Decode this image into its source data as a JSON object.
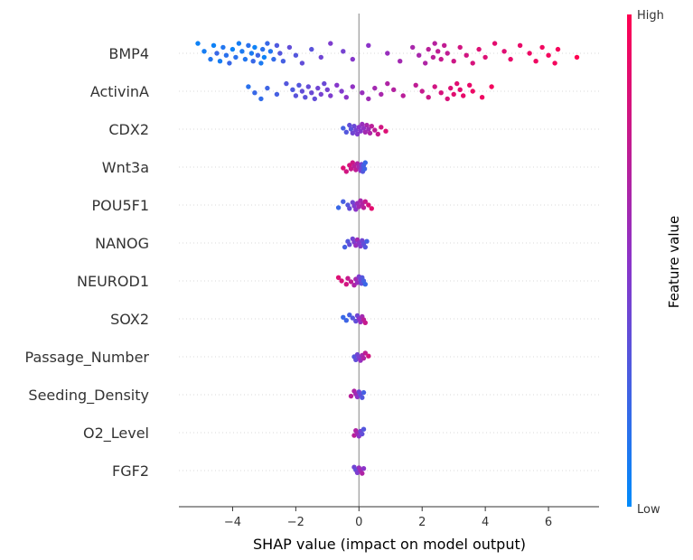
{
  "chart_data": {
    "type": "scatter",
    "subtype": "shap-beeswarm",
    "title": "",
    "xlabel": "SHAP value (impact on model output)",
    "ylabel": "",
    "xlim": [
      -5.7,
      7.6
    ],
    "xticks": [
      -4,
      -2,
      0,
      2,
      4,
      6
    ],
    "xtick_labels": [
      "−4",
      "−2",
      "0",
      "2",
      "4",
      "6"
    ],
    "features": [
      "BMP4",
      "ActivinA",
      "CDX2",
      "Wnt3a",
      "POU5F1",
      "NANOG",
      "NEUROD1",
      "SOX2",
      "Passage_Number",
      "Seeding_Density",
      "O2_Level",
      "FGF2"
    ],
    "colorbar": {
      "title": "Feature value",
      "high_label": "High",
      "low_label": "Low",
      "low_color": "#008bfb",
      "high_color": "#ff0051"
    },
    "colors": {
      "axis": "#333333",
      "zero_line": "#999999",
      "row_grid": "#cccccc"
    },
    "series": [
      {
        "feature": "BMP4",
        "points": [
          [
            -5.1,
            0.05
          ],
          [
            -4.9,
            0.08
          ],
          [
            -4.7,
            0.12
          ],
          [
            -4.6,
            0.05
          ],
          [
            -4.5,
            0.2
          ],
          [
            -4.4,
            0.08
          ],
          [
            -4.3,
            0.12
          ],
          [
            -4.2,
            0.15
          ],
          [
            -4.1,
            0.2
          ],
          [
            -4.0,
            0.05
          ],
          [
            -3.9,
            0.15
          ],
          [
            -3.8,
            0.08
          ],
          [
            -3.7,
            0.1
          ],
          [
            -3.6,
            0.12
          ],
          [
            -3.5,
            0.15
          ],
          [
            -3.4,
            0.1
          ],
          [
            -3.35,
            0.2
          ],
          [
            -3.3,
            0.05
          ],
          [
            -3.2,
            0.22
          ],
          [
            -3.1,
            0.1
          ],
          [
            -3.05,
            0.15
          ],
          [
            -3.0,
            0.05
          ],
          [
            -2.9,
            0.2
          ],
          [
            -2.8,
            0.12
          ],
          [
            -2.7,
            0.18
          ],
          [
            -2.6,
            0.28
          ],
          [
            -2.5,
            0.3
          ],
          [
            -2.4,
            0.25
          ],
          [
            -2.2,
            0.35
          ],
          [
            -2.0,
            0.3
          ],
          [
            -1.8,
            0.35
          ],
          [
            -1.5,
            0.32
          ],
          [
            -1.2,
            0.4
          ],
          [
            -0.9,
            0.45
          ],
          [
            -0.5,
            0.42
          ],
          [
            -0.2,
            0.48
          ],
          [
            0.3,
            0.5
          ],
          [
            0.9,
            0.55
          ],
          [
            1.3,
            0.6
          ],
          [
            1.7,
            0.62
          ],
          [
            1.9,
            0.62
          ],
          [
            2.1,
            0.65
          ],
          [
            2.2,
            0.7
          ],
          [
            2.35,
            0.7
          ],
          [
            2.4,
            0.68
          ],
          [
            2.5,
            0.72
          ],
          [
            2.6,
            0.75
          ],
          [
            2.7,
            0.73
          ],
          [
            2.8,
            0.72
          ],
          [
            3.0,
            0.78
          ],
          [
            3.2,
            0.8
          ],
          [
            3.4,
            0.8
          ],
          [
            3.6,
            0.82
          ],
          [
            3.8,
            0.85
          ],
          [
            4.0,
            0.85
          ],
          [
            4.3,
            0.88
          ],
          [
            4.6,
            0.86
          ],
          [
            4.8,
            0.9
          ],
          [
            5.1,
            0.9
          ],
          [
            5.4,
            0.92
          ],
          [
            5.6,
            0.93
          ],
          [
            5.8,
            0.94
          ],
          [
            6.0,
            0.95
          ],
          [
            6.2,
            0.95
          ],
          [
            6.3,
            0.96
          ],
          [
            6.9,
            1.0
          ]
        ]
      },
      {
        "feature": "ActivinA",
        "points": [
          [
            -3.5,
            0.15
          ],
          [
            -3.3,
            0.2
          ],
          [
            -3.1,
            0.18
          ],
          [
            -2.9,
            0.22
          ],
          [
            -2.6,
            0.25
          ],
          [
            -2.3,
            0.3
          ],
          [
            -2.1,
            0.28
          ],
          [
            -2.0,
            0.32
          ],
          [
            -1.9,
            0.3
          ],
          [
            -1.8,
            0.35
          ],
          [
            -1.7,
            0.33
          ],
          [
            -1.6,
            0.36
          ],
          [
            -1.5,
            0.38
          ],
          [
            -1.4,
            0.35
          ],
          [
            -1.3,
            0.4
          ],
          [
            -1.2,
            0.42
          ],
          [
            -1.1,
            0.38
          ],
          [
            -1.0,
            0.42
          ],
          [
            -0.9,
            0.45
          ],
          [
            -0.7,
            0.48
          ],
          [
            -0.55,
            0.46
          ],
          [
            -0.4,
            0.5
          ],
          [
            -0.2,
            0.52
          ],
          [
            0.1,
            0.55
          ],
          [
            0.3,
            0.58
          ],
          [
            0.5,
            0.6
          ],
          [
            0.7,
            0.62
          ],
          [
            0.9,
            0.65
          ],
          [
            1.1,
            0.67
          ],
          [
            1.4,
            0.7
          ],
          [
            1.8,
            0.72
          ],
          [
            2.0,
            0.75
          ],
          [
            2.2,
            0.78
          ],
          [
            2.4,
            0.8
          ],
          [
            2.6,
            0.82
          ],
          [
            2.8,
            0.83
          ],
          [
            2.9,
            0.85
          ],
          [
            3.0,
            0.87
          ],
          [
            3.1,
            0.86
          ],
          [
            3.2,
            0.88
          ],
          [
            3.3,
            0.9
          ],
          [
            3.5,
            0.9
          ],
          [
            3.6,
            0.92
          ],
          [
            3.9,
            0.93
          ],
          [
            4.2,
            0.95
          ]
        ]
      },
      {
        "feature": "CDX2",
        "points": [
          [
            -0.5,
            0.25
          ],
          [
            -0.4,
            0.3
          ],
          [
            -0.3,
            0.35
          ],
          [
            -0.25,
            0.32
          ],
          [
            -0.2,
            0.4
          ],
          [
            -0.15,
            0.38
          ],
          [
            -0.1,
            0.42
          ],
          [
            -0.05,
            0.45
          ],
          [
            0.0,
            0.5
          ],
          [
            0.05,
            0.48
          ],
          [
            0.1,
            0.55
          ],
          [
            0.15,
            0.52
          ],
          [
            0.2,
            0.6
          ],
          [
            0.25,
            0.62
          ],
          [
            0.3,
            0.58
          ],
          [
            0.35,
            0.65
          ],
          [
            0.4,
            0.7
          ],
          [
            0.5,
            0.72
          ],
          [
            0.6,
            0.75
          ],
          [
            0.7,
            0.8
          ],
          [
            0.85,
            0.85
          ]
        ]
      },
      {
        "feature": "Wnt3a",
        "points": [
          [
            -0.5,
            0.85
          ],
          [
            -0.4,
            0.8
          ],
          [
            -0.3,
            0.82
          ],
          [
            -0.25,
            0.75
          ],
          [
            -0.2,
            0.78
          ],
          [
            -0.15,
            0.7
          ],
          [
            -0.1,
            0.72
          ],
          [
            -0.05,
            0.65
          ],
          [
            0.0,
            0.6
          ],
          [
            0.05,
            0.5
          ],
          [
            0.08,
            0.42
          ],
          [
            0.1,
            0.35
          ],
          [
            0.12,
            0.3
          ],
          [
            0.15,
            0.25
          ],
          [
            0.18,
            0.22
          ],
          [
            0.2,
            0.2
          ]
        ]
      },
      {
        "feature": "POU5F1",
        "points": [
          [
            -0.65,
            0.2
          ],
          [
            -0.5,
            0.25
          ],
          [
            -0.35,
            0.3
          ],
          [
            -0.3,
            0.35
          ],
          [
            -0.2,
            0.4
          ],
          [
            -0.15,
            0.45
          ],
          [
            -0.1,
            0.5
          ],
          [
            -0.05,
            0.55
          ],
          [
            0.0,
            0.6
          ],
          [
            0.05,
            0.62
          ],
          [
            0.1,
            0.65
          ],
          [
            0.15,
            0.7
          ],
          [
            0.2,
            0.75
          ],
          [
            0.3,
            0.82
          ],
          [
            0.4,
            0.88
          ]
        ]
      },
      {
        "feature": "NANOG",
        "points": [
          [
            -0.45,
            0.25
          ],
          [
            -0.35,
            0.3
          ],
          [
            -0.3,
            0.35
          ],
          [
            -0.2,
            0.4
          ],
          [
            -0.15,
            0.45
          ],
          [
            -0.1,
            0.55
          ],
          [
            -0.05,
            0.6
          ],
          [
            0.0,
            0.5
          ],
          [
            0.05,
            0.45
          ],
          [
            0.1,
            0.4
          ],
          [
            0.15,
            0.35
          ],
          [
            0.2,
            0.3
          ],
          [
            0.25,
            0.25
          ]
        ]
      },
      {
        "feature": "NEUROD1",
        "points": [
          [
            -0.65,
            0.85
          ],
          [
            -0.55,
            0.82
          ],
          [
            -0.4,
            0.8
          ],
          [
            -0.35,
            0.75
          ],
          [
            -0.25,
            0.72
          ],
          [
            -0.15,
            0.65
          ],
          [
            -0.1,
            0.6
          ],
          [
            -0.05,
            0.55
          ],
          [
            0.0,
            0.45
          ],
          [
            0.05,
            0.4
          ],
          [
            0.08,
            0.35
          ],
          [
            0.1,
            0.3
          ],
          [
            0.15,
            0.25
          ],
          [
            0.2,
            0.2
          ]
        ]
      },
      {
        "feature": "SOX2",
        "points": [
          [
            -0.5,
            0.2
          ],
          [
            -0.4,
            0.22
          ],
          [
            -0.3,
            0.25
          ],
          [
            -0.2,
            0.3
          ],
          [
            -0.1,
            0.35
          ],
          [
            -0.05,
            0.4
          ],
          [
            0.0,
            0.5
          ],
          [
            0.05,
            0.55
          ],
          [
            0.1,
            0.6
          ],
          [
            0.15,
            0.7
          ],
          [
            0.2,
            0.75
          ]
        ]
      },
      {
        "feature": "Passage_Number",
        "points": [
          [
            -0.15,
            0.3
          ],
          [
            -0.1,
            0.35
          ],
          [
            -0.05,
            0.4
          ],
          [
            0.0,
            0.45
          ],
          [
            0.05,
            0.55
          ],
          [
            0.1,
            0.6
          ],
          [
            0.15,
            0.65
          ],
          [
            0.2,
            0.72
          ],
          [
            0.3,
            0.8
          ]
        ]
      },
      {
        "feature": "Seeding_Density",
        "points": [
          [
            -0.25,
            0.7
          ],
          [
            -0.15,
            0.65
          ],
          [
            -0.1,
            0.6
          ],
          [
            -0.05,
            0.5
          ],
          [
            0.0,
            0.4
          ],
          [
            0.05,
            0.35
          ],
          [
            0.1,
            0.3
          ],
          [
            0.15,
            0.25
          ]
        ]
      },
      {
        "feature": "O2_Level",
        "points": [
          [
            -0.15,
            0.7
          ],
          [
            -0.1,
            0.65
          ],
          [
            -0.05,
            0.6
          ],
          [
            0.0,
            0.5
          ],
          [
            0.05,
            0.4
          ],
          [
            0.1,
            0.35
          ],
          [
            0.15,
            0.3
          ]
        ]
      },
      {
        "feature": "FGF2",
        "points": [
          [
            -0.15,
            0.4
          ],
          [
            -0.1,
            0.35
          ],
          [
            -0.05,
            0.45
          ],
          [
            0.0,
            0.55
          ],
          [
            0.05,
            0.6
          ],
          [
            0.1,
            0.65
          ],
          [
            0.15,
            0.5
          ]
        ]
      }
    ]
  }
}
